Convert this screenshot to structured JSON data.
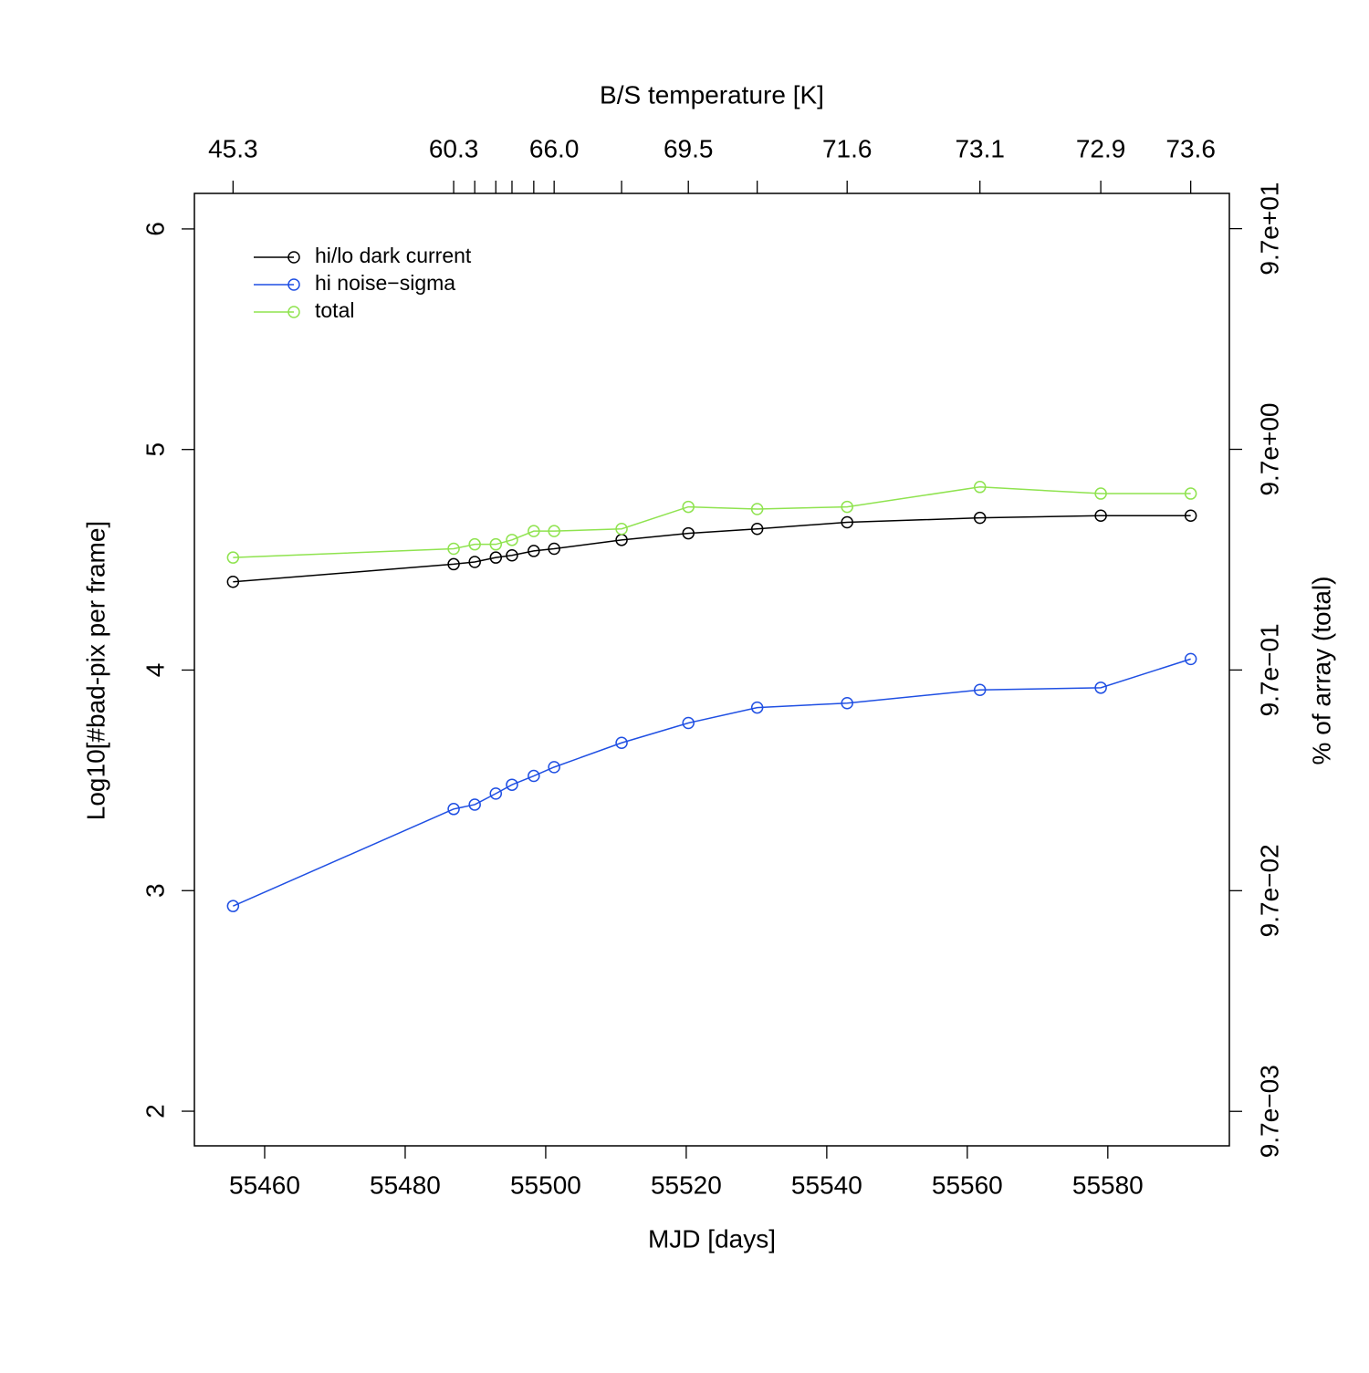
{
  "chart_data": {
    "type": "line",
    "x_label": "MJD [days]",
    "y_label": "Log10[#bad-pix per frame]",
    "y2_label": "% of array (total)",
    "x2_label": "B/S temperature [K]",
    "x": [
      55455.5,
      55486.9,
      55489.9,
      55492.9,
      55495.2,
      55498.3,
      55501.2,
      55510.8,
      55520.3,
      55530.1,
      55542.9,
      55561.8,
      55579.0,
      55591.8
    ],
    "x2tick_labels": [
      "45.3",
      "60.3",
      null,
      null,
      null,
      null,
      "66.0",
      null,
      "69.5",
      null,
      "71.6",
      "73.1",
      "72.9",
      "73.6"
    ],
    "series": [
      {
        "name": "hi/lo dark current",
        "color": "#000000",
        "values": [
          4.4,
          4.48,
          4.49,
          4.51,
          4.52,
          4.54,
          4.55,
          4.59,
          4.62,
          4.64,
          4.67,
          4.69,
          4.7,
          4.7
        ]
      },
      {
        "name": "hi noise−sigma",
        "color": "#1f4fe3",
        "values": [
          2.93,
          3.37,
          3.39,
          3.44,
          3.48,
          3.52,
          3.56,
          3.67,
          3.76,
          3.83,
          3.85,
          3.91,
          3.92,
          4.05
        ]
      },
      {
        "name": "total",
        "color": "#8fe34f",
        "values": [
          4.51,
          4.55,
          4.57,
          4.57,
          4.59,
          4.63,
          4.63,
          4.64,
          4.74,
          4.73,
          4.74,
          4.83,
          4.8,
          4.8
        ]
      }
    ],
    "xlim": [
      55450,
      55597.3
    ],
    "xticks": [
      55460,
      55480,
      55500,
      55520,
      55540,
      55560,
      55580
    ],
    "ylim": [
      1.843,
      6.161
    ],
    "yticks": [
      2,
      3,
      4,
      5,
      6
    ],
    "y2lim": [
      0.00677,
      140.1
    ],
    "y2log": true,
    "y2ticks": [
      {
        "value": 0.0097,
        "label": "9.7e−03"
      },
      {
        "value": 0.097,
        "label": "9.7e−02"
      },
      {
        "value": 0.97,
        "label": "9.7e−01"
      },
      {
        "value": 9.7,
        "label": "9.7e+00"
      },
      {
        "value": 97,
        "label": "9.7e+01"
      }
    ],
    "legend": "top-left"
  }
}
